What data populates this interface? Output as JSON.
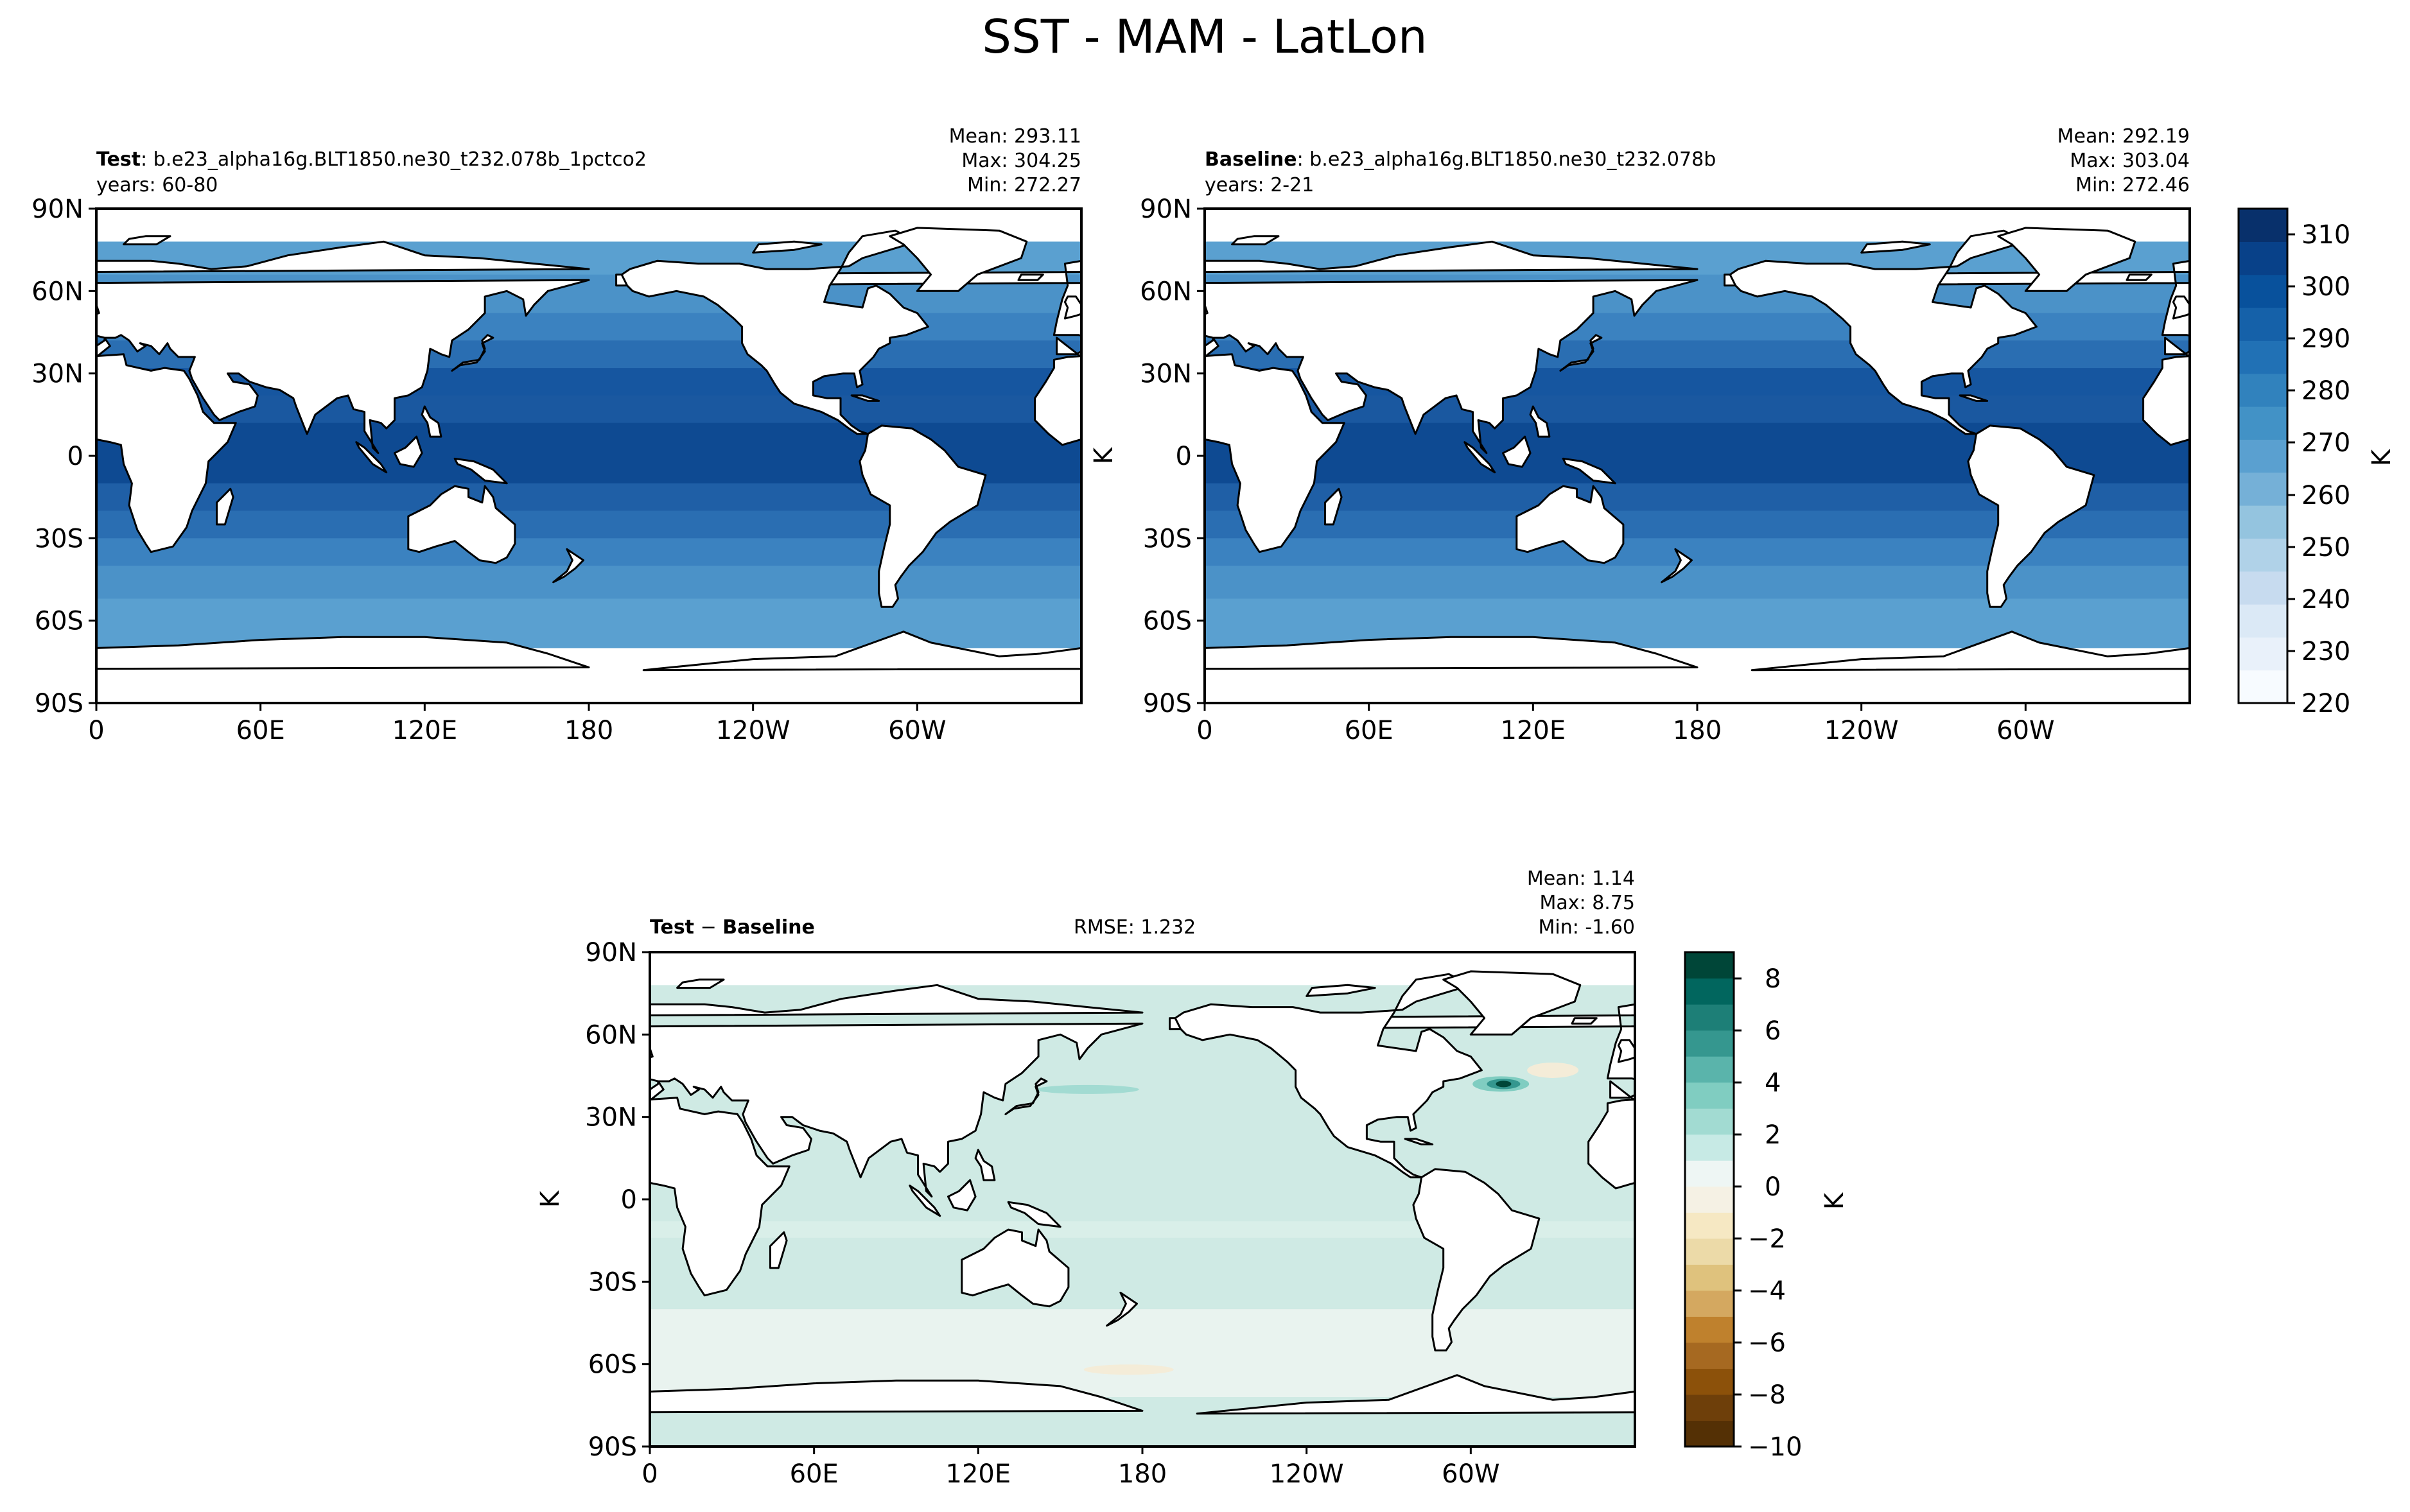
{
  "figure": {
    "title": "SST - MAM - LatLon"
  },
  "panels": [
    {
      "id": "test",
      "label_bold": "Test",
      "label_rest": ": b.e23_alpha16g.BLT1850.ne30_t232.078b_1pctco2",
      "years": "years: 60-80",
      "stats": [
        "Mean: 293.11",
        "Max: 304.25",
        "Min: 272.27"
      ],
      "ylabel": ""
    },
    {
      "id": "baseline",
      "label_bold": "Baseline",
      "label_rest": ": b.e23_alpha16g.BLT1850.ne30_t232.078b",
      "years": "years: 2-21",
      "stats": [
        "Mean: 292.19",
        "Max: 303.04",
        "Min: 272.46"
      ],
      "ylabel": "K"
    },
    {
      "id": "diff",
      "label_bold": "Test",
      "label_mid": " − ",
      "label_bold2": "Baseline",
      "rmse": "RMSE: 1.232",
      "stats": [
        "Mean:  1.14",
        "Max:  8.75",
        "Min: -1.60"
      ],
      "ylabel": "K"
    }
  ],
  "colorbars": [
    {
      "id": "cb-main",
      "label": "K",
      "ticks": [
        "310",
        "300",
        "290",
        "280",
        "270",
        "260",
        "250",
        "240",
        "230",
        "220"
      ],
      "range": [
        220,
        315
      ],
      "colormap": "Blues"
    },
    {
      "id": "cb-diff",
      "label": "K",
      "ticks": [
        "8",
        "6",
        "4",
        "2",
        "0",
        "−2",
        "−4",
        "−6",
        "−8",
        "−10"
      ],
      "range": [
        -10,
        9
      ],
      "colormap": "BrBG"
    }
  ],
  "chart_data": [
    {
      "type": "heatmap",
      "title": "Test: b.e23_alpha16g.BLT1850.ne30_t232.078b_1pctco2",
      "subtitle": "years: 60-80",
      "xticks": [
        "0",
        "60E",
        "120E",
        "180",
        "120W",
        "60W"
      ],
      "yticks": [
        "90N",
        "60N",
        "30N",
        "0",
        "30S",
        "60S",
        "90S"
      ],
      "xlim": [
        0,
        360
      ],
      "ylim": [
        -90,
        90
      ],
      "value_units": "K",
      "stats": {
        "mean": 293.11,
        "max": 304.25,
        "min": 272.27
      }
    },
    {
      "type": "heatmap",
      "title": "Baseline: b.e23_alpha16g.BLT1850.ne30_t232.078b",
      "subtitle": "years: 2-21",
      "xticks": [
        "0",
        "60E",
        "120E",
        "180",
        "120W",
        "60W"
      ],
      "yticks": [
        "90N",
        "60N",
        "30N",
        "0",
        "30S",
        "60S",
        "90S"
      ],
      "xlim": [
        0,
        360
      ],
      "ylim": [
        -90,
        90
      ],
      "ylabel": "K",
      "value_units": "K",
      "stats": {
        "mean": 292.19,
        "max": 303.04,
        "min": 272.46
      }
    },
    {
      "type": "heatmap",
      "title": "Test − Baseline",
      "xticks": [
        "0",
        "60E",
        "120E",
        "180",
        "120W",
        "60W"
      ],
      "yticks": [
        "90N",
        "60N",
        "30N",
        "0",
        "30S",
        "60S",
        "90S"
      ],
      "xlim": [
        0,
        360
      ],
      "ylim": [
        -90,
        90
      ],
      "ylabel": "K",
      "value_units": "K",
      "rmse": 1.232,
      "stats": {
        "mean": 1.14,
        "max": 8.75,
        "min": -1.6
      }
    }
  ],
  "colors": {
    "ocean_bands": [
      "#1f5fa6",
      "#1a58a0",
      "#0e4a92",
      "#0c4890",
      "#1656a0",
      "#2a6eb2",
      "#3b82c0",
      "#4b92c8",
      "#5aa0d0"
    ],
    "blues": [
      "#f7fbff",
      "#e9f1fa",
      "#dbe9f6",
      "#c7dbef",
      "#b0d2e8",
      "#94c4df",
      "#75b0d7",
      "#5aa0d0",
      "#4292c6",
      "#3182bd",
      "#2171b5",
      "#1561a9",
      "#08519c",
      "#084189",
      "#08306b"
    ],
    "brbg": [
      "#543005",
      "#6e3f0a",
      "#8c510a",
      "#a66921",
      "#bf812d",
      "#d4a860",
      "#dfc27d",
      "#ecdaa8",
      "#f6e8c3",
      "#f5f1e4",
      "#eef6f4",
      "#c7eae5",
      "#a2dbd2",
      "#80cdc1",
      "#5ab4ab",
      "#35978f",
      "#1d7f77",
      "#01665e",
      "#004638"
    ],
    "diff_ocean": "#cfeae4",
    "diff_south": "#e9f3ef",
    "diff_warm": "#f4ecd8"
  }
}
